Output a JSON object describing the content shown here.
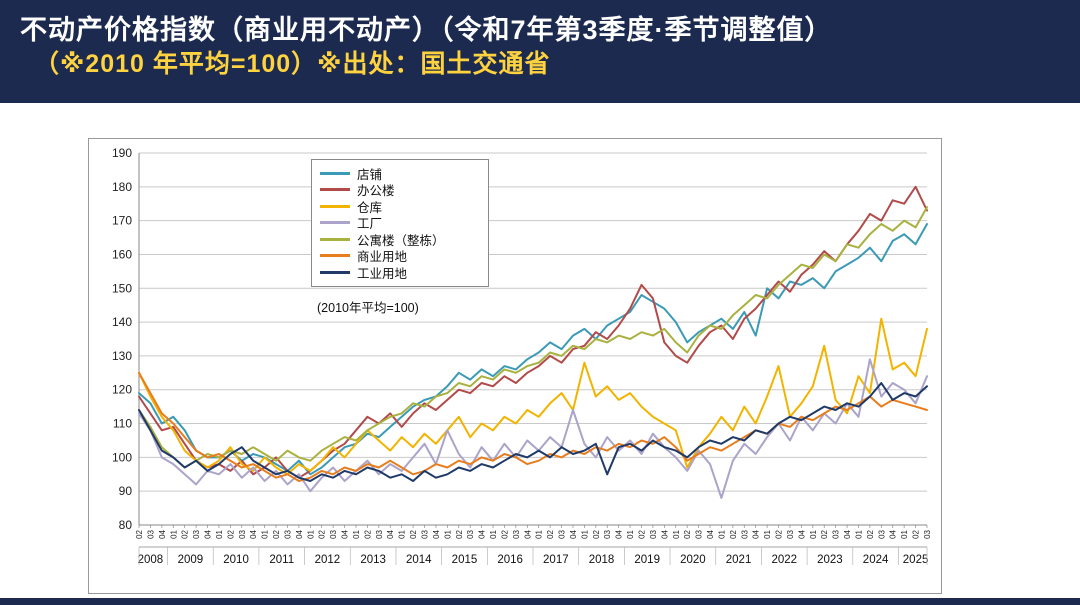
{
  "page": {
    "title": "不动产价格指数（商业用不动产）（令和7年第3季度·季节调整值）",
    "subtitle": "（※2010 年平均=100）※出处：国土交通省"
  },
  "colors": {
    "header_bg": "#1b2a4e",
    "title_text": "#ffffff",
    "subtitle_text": "#ffd23f",
    "grid": "#c9c9c9",
    "axis": "#888888"
  },
  "chart_data": {
    "type": "line",
    "title": "",
    "annotation": "(2010年平均=100)",
    "ylim": [
      80,
      190
    ],
    "ytick_step": 10,
    "grid": true,
    "legend_position": "top-inside",
    "x_quarter_labels": [
      "02",
      "03",
      "04",
      "01",
      "02",
      "03",
      "04",
      "01",
      "02",
      "03",
      "04",
      "01",
      "02",
      "03",
      "04",
      "01",
      "02",
      "03",
      "04",
      "01",
      "02",
      "03",
      "04",
      "01",
      "02",
      "03",
      "04",
      "01",
      "02",
      "03",
      "04",
      "01",
      "02",
      "03",
      "04",
      "01",
      "02",
      "03",
      "04",
      "01",
      "02",
      "03",
      "04",
      "01",
      "02",
      "03",
      "04",
      "01",
      "02",
      "03",
      "04",
      "01",
      "02",
      "03",
      "04",
      "01",
      "02",
      "03",
      "04",
      "01",
      "02",
      "03",
      "04",
      "01",
      "02",
      "03",
      "04",
      "01",
      "02",
      "03"
    ],
    "years": [
      {
        "label": "2008",
        "count": 3
      },
      {
        "label": "2009",
        "count": 4
      },
      {
        "label": "2010",
        "count": 4
      },
      {
        "label": "2011",
        "count": 4
      },
      {
        "label": "2012",
        "count": 4
      },
      {
        "label": "2013",
        "count": 4
      },
      {
        "label": "2014",
        "count": 4
      },
      {
        "label": "2015",
        "count": 4
      },
      {
        "label": "2016",
        "count": 4
      },
      {
        "label": "2017",
        "count": 4
      },
      {
        "label": "2018",
        "count": 4
      },
      {
        "label": "2019",
        "count": 4
      },
      {
        "label": "2020",
        "count": 4
      },
      {
        "label": "2021",
        "count": 4
      },
      {
        "label": "2022",
        "count": 4
      },
      {
        "label": "2023",
        "count": 4
      },
      {
        "label": "2024",
        "count": 4
      },
      {
        "label": "2025",
        "count": 3
      }
    ],
    "series": [
      {
        "name": "店铺",
        "color": "#3b9bb5",
        "values": [
          119,
          116,
          110,
          112,
          108,
          102,
          100,
          100,
          102,
          99,
          101,
          100,
          98,
          96,
          99,
          95,
          97,
          100,
          103,
          104,
          107,
          106,
          109,
          112,
          115,
          117,
          118,
          121,
          125,
          123,
          126,
          124,
          127,
          126,
          129,
          131,
          134,
          132,
          136,
          138,
          135,
          139,
          141,
          143,
          148,
          146,
          144,
          140,
          134,
          137,
          139,
          141,
          138,
          143,
          136,
          150,
          147,
          152,
          151,
          153,
          150,
          155,
          157,
          159,
          162,
          158,
          164,
          166,
          163,
          169
        ]
      },
      {
        "name": "办公楼",
        "color": "#b24a4a",
        "values": [
          118,
          113,
          108,
          109,
          104,
          99,
          97,
          98,
          96,
          99,
          95,
          97,
          100,
          96,
          94,
          96,
          99,
          102,
          104,
          108,
          112,
          110,
          113,
          109,
          113,
          116,
          114,
          117,
          120,
          119,
          122,
          121,
          124,
          122,
          125,
          127,
          130,
          128,
          132,
          133,
          137,
          135,
          139,
          144,
          151,
          147,
          134,
          130,
          128,
          133,
          137,
          139,
          135,
          141,
          144,
          148,
          152,
          149,
          154,
          157,
          161,
          158,
          163,
          167,
          172,
          170,
          176,
          175,
          180,
          173
        ]
      },
      {
        "name": "仓库",
        "color": "#f2b400",
        "values": [
          125,
          118,
          112,
          108,
          102,
          99,
          97,
          99,
          103,
          98,
          96,
          100,
          97,
          95,
          98,
          96,
          99,
          103,
          100,
          104,
          108,
          105,
          102,
          106,
          103,
          107,
          104,
          108,
          112,
          106,
          110,
          108,
          112,
          110,
          114,
          112,
          116,
          119,
          114,
          128,
          118,
          121,
          117,
          119,
          115,
          112,
          110,
          108,
          97,
          103,
          107,
          112,
          108,
          115,
          110,
          118,
          127,
          112,
          116,
          121,
          133,
          117,
          113,
          124,
          119,
          141,
          126,
          128,
          124,
          138
        ]
      },
      {
        "name": "工厂",
        "color": "#aba3c9",
        "values": [
          113,
          108,
          100,
          98,
          95,
          92,
          96,
          95,
          98,
          94,
          97,
          93,
          96,
          92,
          95,
          90,
          94,
          97,
          93,
          96,
          99,
          95,
          98,
          96,
          100,
          104,
          98,
          108,
          101,
          97,
          103,
          99,
          104,
          100,
          105,
          102,
          106,
          103,
          114,
          104,
          100,
          106,
          102,
          105,
          101,
          107,
          103,
          100,
          96,
          102,
          98,
          88,
          99,
          104,
          101,
          106,
          110,
          105,
          112,
          108,
          113,
          110,
          116,
          112,
          129,
          118,
          122,
          120,
          116,
          124
        ]
      },
      {
        "name": "公寓楼（整栋）",
        "color": "#a9b13f",
        "values": [
          114,
          109,
          103,
          100,
          97,
          99,
          101,
          100,
          102,
          101,
          103,
          101,
          99,
          102,
          100,
          99,
          102,
          104,
          106,
          105,
          108,
          110,
          112,
          113,
          116,
          115,
          118,
          119,
          122,
          121,
          124,
          123,
          126,
          125,
          127,
          128,
          131,
          130,
          133,
          132,
          135,
          134,
          136,
          135,
          137,
          136,
          138,
          134,
          131,
          136,
          139,
          138,
          142,
          145,
          148,
          147,
          151,
          154,
          157,
          156,
          160,
          158,
          163,
          162,
          166,
          169,
          167,
          170,
          168,
          174
        ]
      },
      {
        "name": "商业用地",
        "color": "#e87d1e",
        "values": [
          125,
          119,
          113,
          110,
          106,
          102,
          100,
          101,
          99,
          97,
          98,
          96,
          94,
          95,
          93,
          94,
          96,
          95,
          97,
          96,
          98,
          97,
          99,
          97,
          95,
          96,
          98,
          97,
          99,
          98,
          100,
          99,
          101,
          100,
          98,
          99,
          101,
          100,
          102,
          101,
          103,
          102,
          104,
          103,
          105,
          104,
          106,
          103,
          99,
          101,
          103,
          102,
          104,
          106,
          108,
          107,
          110,
          109,
          112,
          111,
          113,
          115,
          114,
          116,
          118,
          115,
          117,
          116,
          115,
          114
        ]
      },
      {
        "name": "工业用地",
        "color": "#1f3a68",
        "values": [
          114,
          108,
          102,
          100,
          97,
          99,
          96,
          98,
          101,
          103,
          99,
          97,
          95,
          96,
          94,
          93,
          95,
          94,
          96,
          95,
          97,
          96,
          94,
          95,
          93,
          96,
          94,
          95,
          97,
          96,
          98,
          97,
          99,
          101,
          100,
          102,
          100,
          103,
          101,
          102,
          104,
          95,
          103,
          104,
          102,
          105,
          103,
          102,
          100,
          103,
          105,
          104,
          106,
          105,
          108,
          107,
          110,
          112,
          111,
          113,
          115,
          114,
          116,
          115,
          118,
          122,
          117,
          119,
          118,
          121
        ]
      }
    ]
  }
}
